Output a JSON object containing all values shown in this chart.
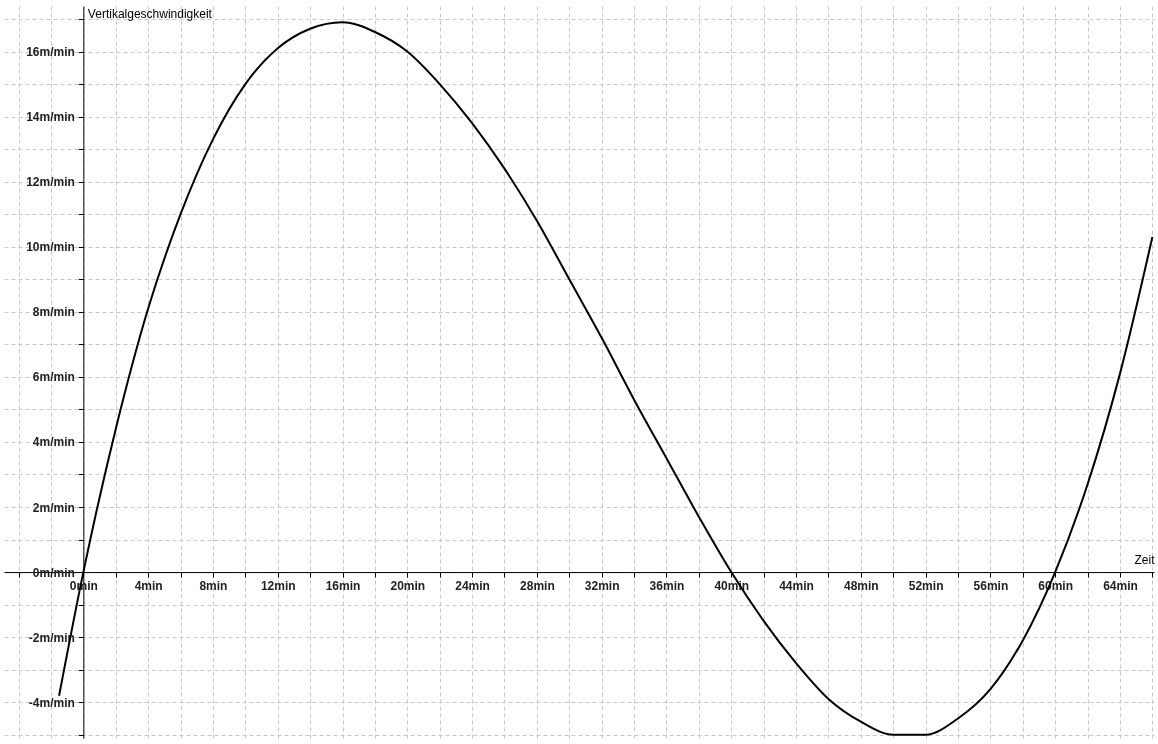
{
  "chart_data": {
    "type": "line",
    "xlabel": "Zeit",
    "ylabel": "Vertikalgeschwindigkeit",
    "x": [
      -1.5,
      0,
      2,
      4,
      6,
      8,
      10,
      12,
      14,
      16,
      18,
      20,
      22,
      24,
      26,
      28,
      30,
      32,
      34,
      36,
      38,
      40,
      42,
      44,
      46,
      48,
      50,
      52,
      54,
      56,
      58,
      60,
      62,
      64,
      66
    ],
    "series": [
      {
        "color": "#000000",
        "values": [
          -3.8,
          0,
          4.4,
          8.1,
          11.0,
          13.3,
          15.0,
          16.1,
          16.7,
          16.9,
          16.6,
          16.0,
          15.0,
          13.8,
          12.4,
          10.8,
          9.0,
          7.2,
          5.3,
          3.5,
          1.7,
          0,
          -1.5,
          -2.8,
          -3.9,
          -4.6,
          -5.0,
          -5.0,
          -4.5,
          -3.6,
          -2.1,
          0,
          2.7,
          6.1,
          10.3
        ]
      }
    ],
    "xlim": [
      -4.9,
      66.1
    ],
    "ylim": [
      -5.1,
      17.4
    ],
    "xticks": [
      {
        "value": -4,
        "label": null
      },
      {
        "value": -2,
        "label": null
      },
      {
        "value": 0,
        "label": "0min"
      },
      {
        "value": 2,
        "label": null
      },
      {
        "value": 4,
        "label": "4min"
      },
      {
        "value": 6,
        "label": null
      },
      {
        "value": 8,
        "label": "8min"
      },
      {
        "value": 10,
        "label": null
      },
      {
        "value": 12,
        "label": "12min"
      },
      {
        "value": 14,
        "label": null
      },
      {
        "value": 16,
        "label": "16min"
      },
      {
        "value": 18,
        "label": null
      },
      {
        "value": 20,
        "label": "20min"
      },
      {
        "value": 22,
        "label": null
      },
      {
        "value": 24,
        "label": "24min"
      },
      {
        "value": 26,
        "label": null
      },
      {
        "value": 28,
        "label": "28min"
      },
      {
        "value": 30,
        "label": null
      },
      {
        "value": 32,
        "label": "32min"
      },
      {
        "value": 34,
        "label": null
      },
      {
        "value": 36,
        "label": "36min"
      },
      {
        "value": 38,
        "label": null
      },
      {
        "value": 40,
        "label": "40min"
      },
      {
        "value": 42,
        "label": null
      },
      {
        "value": 44,
        "label": "44min"
      },
      {
        "value": 46,
        "label": null
      },
      {
        "value": 48,
        "label": "48min"
      },
      {
        "value": 50,
        "label": null
      },
      {
        "value": 52,
        "label": "52min"
      },
      {
        "value": 54,
        "label": null
      },
      {
        "value": 56,
        "label": "56min"
      },
      {
        "value": 58,
        "label": null
      },
      {
        "value": 60,
        "label": "60min"
      },
      {
        "value": 62,
        "label": null
      },
      {
        "value": 64,
        "label": "64min"
      },
      {
        "value": 66,
        "label": null
      }
    ],
    "yticks": [
      {
        "value": -5,
        "label": null
      },
      {
        "value": -4,
        "label": "-4m/min"
      },
      {
        "value": -3,
        "label": null
      },
      {
        "value": -2,
        "label": "-2m/min"
      },
      {
        "value": -1,
        "label": null
      },
      {
        "value": 0,
        "label": "0m/min"
      },
      {
        "value": 1,
        "label": null
      },
      {
        "value": 2,
        "label": "2m/min"
      },
      {
        "value": 3,
        "label": null
      },
      {
        "value": 4,
        "label": "4m/min"
      },
      {
        "value": 5,
        "label": null
      },
      {
        "value": 6,
        "label": "6m/min"
      },
      {
        "value": 7,
        "label": null
      },
      {
        "value": 8,
        "label": "8m/min"
      },
      {
        "value": 9,
        "label": null
      },
      {
        "value": 10,
        "label": "10m/min"
      },
      {
        "value": 11,
        "label": null
      },
      {
        "value": 12,
        "label": "12m/min"
      },
      {
        "value": 13,
        "label": null
      },
      {
        "value": 14,
        "label": "14m/min"
      },
      {
        "value": 15,
        "label": null
      },
      {
        "value": 16,
        "label": "16m/min"
      },
      {
        "value": 17,
        "label": null
      }
    ],
    "grid": true
  }
}
